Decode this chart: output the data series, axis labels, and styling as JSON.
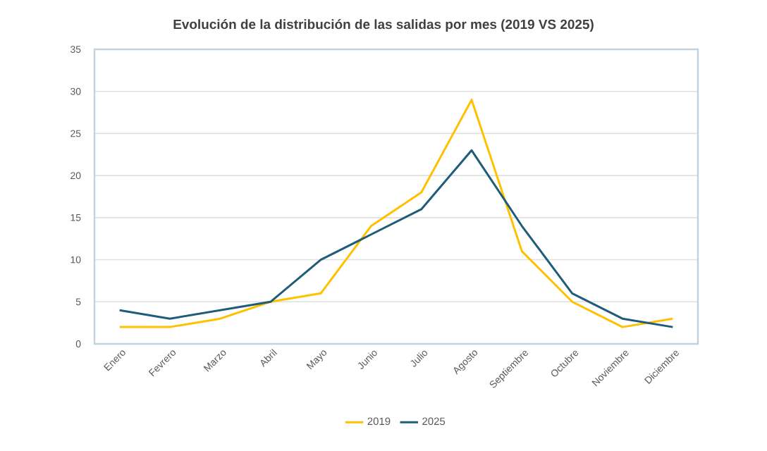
{
  "chart_data": {
    "type": "line",
    "title": "Evolución de la distribución de las salidas por mes (2019 VS 2025)",
    "categories": [
      "Enero",
      "Fevrero",
      "Marzo",
      "Abril",
      "Mayo",
      "Junio",
      "Julio",
      "Agosto",
      "Septiembre",
      "Octubre",
      "Noviembre",
      "Diciembre"
    ],
    "series": [
      {
        "name": "2019",
        "color": "#ffc000",
        "values": [
          2,
          2,
          3,
          5,
          6,
          14,
          18,
          29,
          11,
          5,
          2,
          3
        ]
      },
      {
        "name": "2025",
        "color": "#1f5c7a",
        "values": [
          4,
          3,
          4,
          5,
          10,
          13,
          16,
          23,
          14,
          6,
          3,
          2
        ]
      }
    ],
    "ylim": [
      0,
      35
    ],
    "yticks": [
      0,
      5,
      10,
      15,
      20,
      25,
      30,
      35
    ],
    "grid": "y",
    "legend": "bottom",
    "marker": "none",
    "line_style": "solid"
  }
}
